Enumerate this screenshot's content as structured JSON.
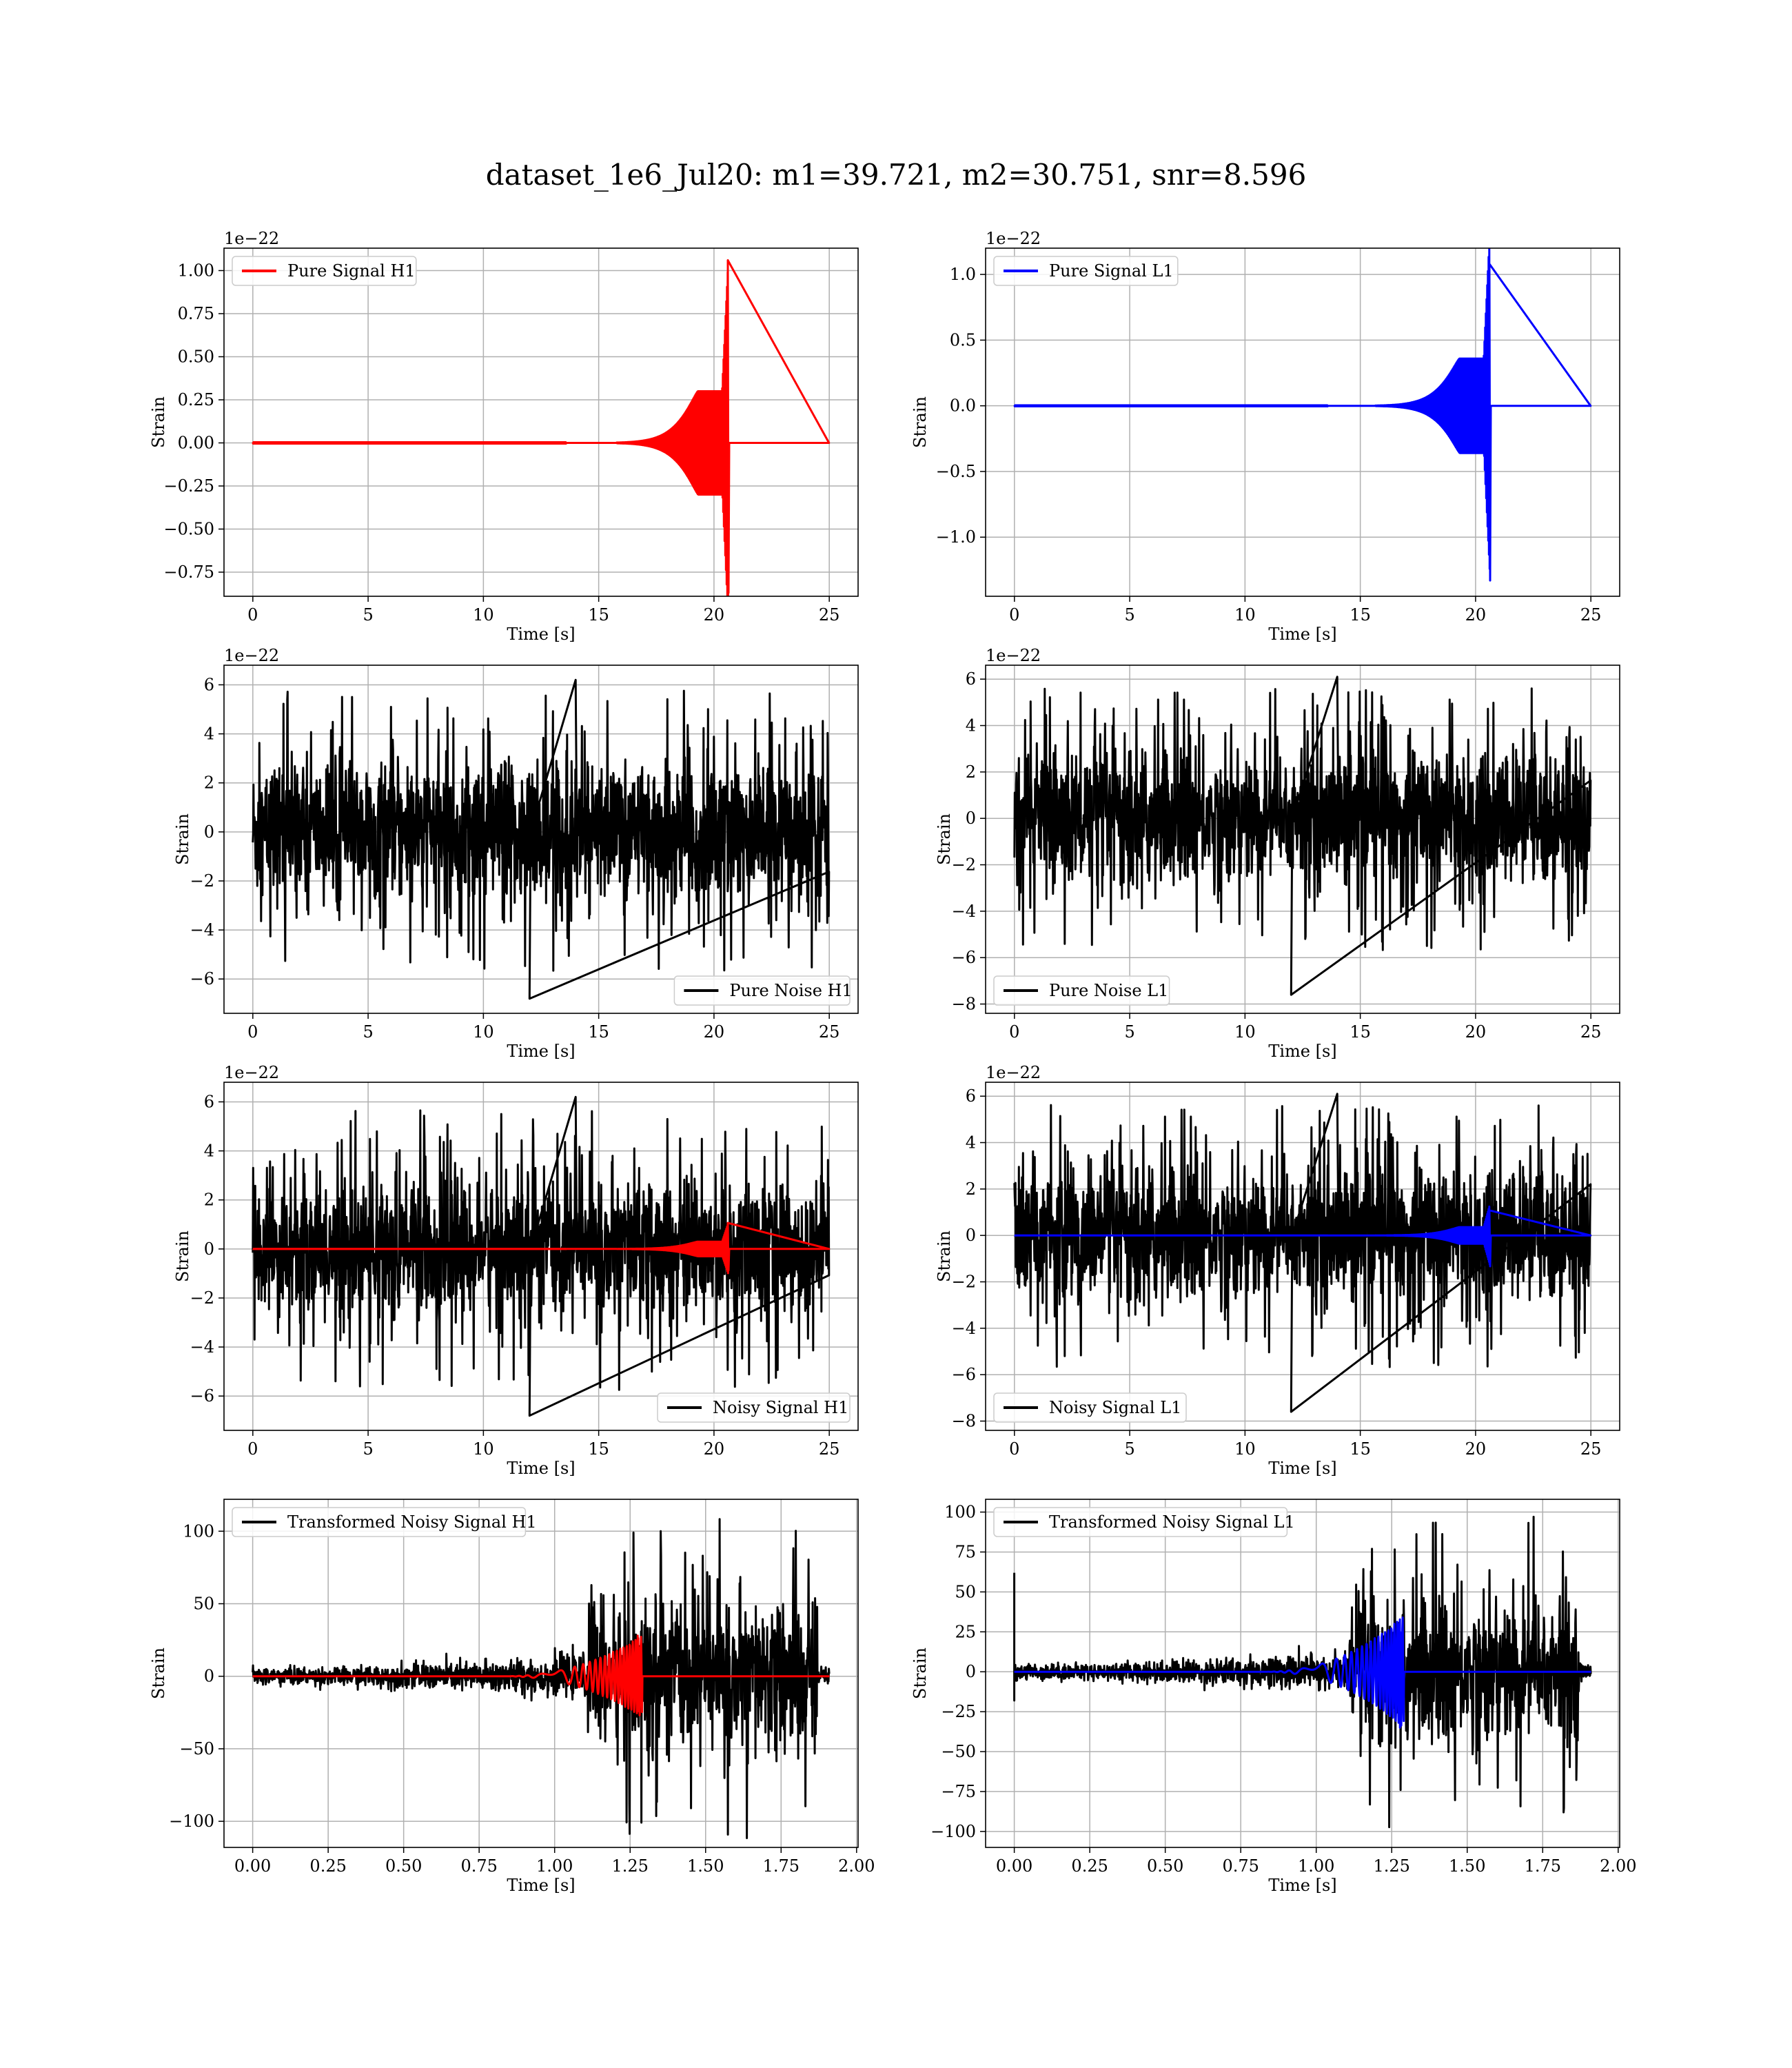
{
  "suptitle": "dataset_1e6_Jul20: m1=39.721, m2=30.751, snr=8.596",
  "colors": {
    "h1_signal": "#ff0000",
    "l1_signal": "#0000ff",
    "noise": "#000000",
    "grid": "#b0b0b0"
  },
  "chart_data": [
    {
      "type": "line",
      "legend": "Pure Signal H1",
      "legend_loc": "upper left",
      "xlabel": "Time [s]",
      "ylabel": "Strain",
      "offset_text": "1e−22",
      "xlim": [
        -1.25,
        26.25
      ],
      "ylim": [
        -0.89,
        1.13
      ],
      "xticks": [
        0,
        5,
        10,
        15,
        20,
        25
      ],
      "xtick_labels": [
        "0",
        "5",
        "10",
        "15",
        "20",
        "25"
      ],
      "yticks": [
        1.0,
        0.75,
        0.5,
        0.25,
        0.0,
        -0.25,
        -0.5,
        -0.75
      ],
      "ytick_labels": [
        "1.00",
        "0.75",
        "0.50",
        "0.25",
        "0.00",
        "−0.25",
        "−0.50",
        "−0.75"
      ],
      "grid": true,
      "series": [
        {
          "name": "Pure Signal H1",
          "color": "#ff0000",
          "kind": "chirp",
          "x_start": 0,
          "x_end": 25,
          "t_merger": 20.6,
          "peak_pos": 1.06,
          "peak_neg": -0.87,
          "plateau": 0.3
        }
      ]
    },
    {
      "type": "line",
      "legend": "Pure Signal L1",
      "legend_loc": "upper left",
      "xlabel": "Time [s]",
      "ylabel": "Strain",
      "offset_text": "1e−22",
      "xlim": [
        -1.25,
        26.25
      ],
      "ylim": [
        -1.45,
        1.2
      ],
      "xticks": [
        0,
        5,
        10,
        15,
        20,
        25
      ],
      "xtick_labels": [
        "0",
        "5",
        "10",
        "15",
        "20",
        "25"
      ],
      "yticks": [
        1.0,
        0.5,
        0.0,
        -0.5,
        -1.0
      ],
      "ytick_labels": [
        "1.0",
        "0.5",
        "0.0",
        "−0.5",
        "−1.0"
      ],
      "grid": true,
      "series": [
        {
          "name": "Pure Signal L1",
          "color": "#0000ff",
          "kind": "chirp",
          "x_start": 0,
          "x_end": 25,
          "t_merger": 20.6,
          "peak_pos": 1.08,
          "peak_neg": -1.33,
          "plateau": 0.36
        }
      ]
    },
    {
      "type": "line",
      "legend": "Pure Noise H1",
      "legend_loc": "lower right",
      "xlabel": "Time [s]",
      "ylabel": "Strain",
      "offset_text": "1e−22",
      "xlim": [
        -1.25,
        26.25
      ],
      "ylim": [
        -7.4,
        6.8
      ],
      "xticks": [
        0,
        5,
        10,
        15,
        20,
        25
      ],
      "xtick_labels": [
        "0",
        "5",
        "10",
        "15",
        "20",
        "25"
      ],
      "yticks": [
        6,
        4,
        2,
        0,
        -2,
        -4,
        -6
      ],
      "ytick_labels": [
        "6",
        "4",
        "2",
        "0",
        "−2",
        "−4",
        "−6"
      ],
      "grid": true,
      "series": [
        {
          "name": "Pure Noise H1",
          "color": "#000000",
          "kind": "noise",
          "x_start": 0,
          "x_end": 25,
          "band": 3.3,
          "max": 6.2,
          "min": -6.8
        }
      ]
    },
    {
      "type": "line",
      "legend": "Pure Noise L1",
      "legend_loc": "lower left",
      "xlabel": "Time [s]",
      "ylabel": "Strain",
      "offset_text": "1e−22",
      "xlim": [
        -1.25,
        26.25
      ],
      "ylim": [
        -8.4,
        6.6
      ],
      "xticks": [
        0,
        5,
        10,
        15,
        20,
        25
      ],
      "xtick_labels": [
        "0",
        "5",
        "10",
        "15",
        "20",
        "25"
      ],
      "yticks": [
        6,
        4,
        2,
        0,
        -2,
        -4,
        -6,
        -8
      ],
      "ytick_labels": [
        "6",
        "4",
        "2",
        "0",
        "−2",
        "−4",
        "−6",
        "−8"
      ],
      "grid": true,
      "series": [
        {
          "name": "Pure Noise L1",
          "color": "#000000",
          "kind": "noise",
          "x_start": 0,
          "x_end": 25,
          "band": 3.4,
          "max": 6.1,
          "min": -7.6
        }
      ]
    },
    {
      "type": "line",
      "legend": "Noisy Signal H1",
      "legend_loc": "lower right",
      "xlabel": "Time [s]",
      "ylabel": "Strain",
      "offset_text": "1e−22",
      "xlim": [
        -1.25,
        26.25
      ],
      "ylim": [
        -7.4,
        6.8
      ],
      "xticks": [
        0,
        5,
        10,
        15,
        20,
        25
      ],
      "xtick_labels": [
        "0",
        "5",
        "10",
        "15",
        "20",
        "25"
      ],
      "yticks": [
        6,
        4,
        2,
        0,
        -2,
        -4,
        -6
      ],
      "ytick_labels": [
        "6",
        "4",
        "2",
        "0",
        "−2",
        "−4",
        "−6"
      ],
      "grid": true,
      "series": [
        {
          "name": "Noisy Signal H1",
          "color": "#000000",
          "kind": "noise",
          "x_start": 0,
          "x_end": 25,
          "band": 3.3,
          "max": 6.2,
          "min": -6.8
        },
        {
          "name": "Pure Signal H1",
          "color": "#ff0000",
          "kind": "chirp",
          "x_start": 0,
          "x_end": 25,
          "t_merger": 20.6,
          "peak_pos": 1.06,
          "peak_neg": -0.87,
          "plateau": 0.3
        }
      ]
    },
    {
      "type": "line",
      "legend": "Noisy Signal L1",
      "legend_loc": "lower left",
      "xlabel": "Time [s]",
      "ylabel": "Strain",
      "offset_text": "1e−22",
      "xlim": [
        -1.25,
        26.25
      ],
      "ylim": [
        -8.4,
        6.6
      ],
      "xticks": [
        0,
        5,
        10,
        15,
        20,
        25
      ],
      "xtick_labels": [
        "0",
        "5",
        "10",
        "15",
        "20",
        "25"
      ],
      "yticks": [
        6,
        4,
        2,
        0,
        -2,
        -4,
        -6,
        -8
      ],
      "ytick_labels": [
        "6",
        "4",
        "2",
        "0",
        "−2",
        "−4",
        "−6",
        "−8"
      ],
      "grid": true,
      "series": [
        {
          "name": "Noisy Signal L1",
          "color": "#000000",
          "kind": "noise",
          "x_start": 0,
          "x_end": 25,
          "band": 3.4,
          "max": 6.1,
          "min": -7.6
        },
        {
          "name": "Pure Signal L1",
          "color": "#0000ff",
          "kind": "chirp",
          "x_start": 0,
          "x_end": 25,
          "t_merger": 20.6,
          "peak_pos": 1.08,
          "peak_neg": -1.33,
          "plateau": 0.36
        }
      ]
    },
    {
      "type": "line",
      "legend": "Transformed Noisy Signal H1",
      "legend_loc": "upper left",
      "xlabel": "Time [s]",
      "ylabel": "Strain",
      "offset_text": "",
      "xlim": [
        -0.095,
        2.005
      ],
      "ylim": [
        -118,
        122
      ],
      "xticks": [
        0.0,
        0.25,
        0.5,
        0.75,
        1.0,
        1.25,
        1.5,
        1.75,
        2.0
      ],
      "xtick_labels": [
        "0.00",
        "0.25",
        "0.50",
        "0.75",
        "1.00",
        "1.25",
        "1.50",
        "1.75",
        "2.00"
      ],
      "yticks": [
        100,
        50,
        0,
        -50,
        -100
      ],
      "ytick_labels": [
        "100",
        "50",
        "0",
        "−50",
        "−100"
      ],
      "grid": true,
      "series": [
        {
          "name": "Transformed Noisy Signal H1",
          "color": "#000000",
          "kind": "whitened",
          "x_start": 0,
          "x_end": 1.91,
          "t_jump": 1.11,
          "t_end_big": 1.87,
          "small_amp": 6,
          "mid_amp": 14,
          "big_amp": 50,
          "max": 112,
          "min": -113
        },
        {
          "name": "Pure Signal H1 (whitened)",
          "color": "#ff0000",
          "kind": "wchirp",
          "x_start": 0,
          "x_end": 1.91,
          "t_merger": 1.275,
          "peak_pos": 28,
          "peak_neg": -24
        }
      ]
    },
    {
      "type": "line",
      "legend": "Transformed Noisy Signal L1",
      "legend_loc": "upper left",
      "xlabel": "Time [s]",
      "ylabel": "Strain",
      "offset_text": "",
      "xlim": [
        -0.095,
        2.005
      ],
      "ylim": [
        -110,
        108
      ],
      "xticks": [
        0.0,
        0.25,
        0.5,
        0.75,
        1.0,
        1.25,
        1.5,
        1.75,
        2.0
      ],
      "xtick_labels": [
        "0.00",
        "0.25",
        "0.50",
        "0.75",
        "1.00",
        "1.25",
        "1.50",
        "1.75",
        "2.00"
      ],
      "yticks": [
        100,
        75,
        50,
        25,
        0,
        -25,
        -50,
        -75,
        -100
      ],
      "ytick_labels": [
        "100",
        "75",
        "50",
        "25",
        "0",
        "−25",
        "−50",
        "−75",
        "−100"
      ],
      "grid": true,
      "series": [
        {
          "name": "Transformed Noisy Signal L1",
          "color": "#000000",
          "kind": "whitened",
          "x_start": 0,
          "x_end": 1.91,
          "t_jump": 1.11,
          "t_end_big": 1.87,
          "small_amp": 5,
          "mid_amp": 12,
          "big_amp": 45,
          "max": 100,
          "min": -100,
          "spike_at_zero": 62
        },
        {
          "name": "Pure Signal L1 (whitened)",
          "color": "#0000ff",
          "kind": "wchirp",
          "x_start": 0,
          "x_end": 1.91,
          "t_merger": 1.275,
          "peak_pos": 30,
          "peak_neg": -35
        }
      ]
    }
  ]
}
